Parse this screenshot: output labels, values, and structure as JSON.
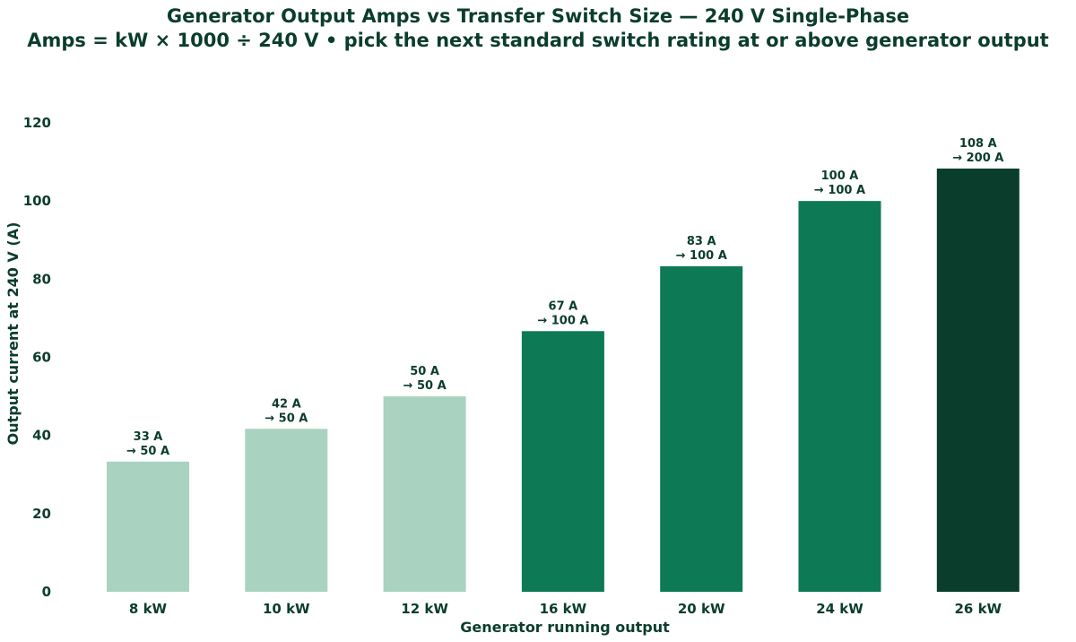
{
  "chart_data": {
    "type": "bar",
    "title": "Generator Output Amps vs Transfer Switch Size — 240 V Single-Phase",
    "subtitle": "Amps = kW × 1000 ÷ 240 V • pick the next standard switch rating at or above generator output",
    "xlabel": "Generator running output",
    "ylabel": "Output current at 240 V (A)",
    "ylim": [
      0,
      120
    ],
    "yticks": [
      0,
      20,
      40,
      60,
      80,
      100,
      120
    ],
    "grid": false,
    "categories": [
      "8 kW",
      "10 kW",
      "12 kW",
      "16 kW",
      "20 kW",
      "24 kW",
      "26 kW"
    ],
    "values": [
      33.3,
      41.7,
      50,
      66.7,
      83.3,
      100,
      108.3
    ],
    "value_labels": [
      "33 A",
      "42 A",
      "50 A",
      "67 A",
      "83 A",
      "100 A",
      "108 A"
    ],
    "switch_labels": [
      "→ 50 A",
      "→ 50 A",
      "→ 50 A",
      "→ 100 A",
      "→ 100 A",
      "→ 100 A",
      "→ 200 A"
    ],
    "switch_ratings": [
      50,
      50,
      50,
      100,
      100,
      100,
      200
    ],
    "colors": {
      "switch_50": "#aad2c1",
      "switch_100": "#0d7a55",
      "switch_200": "#0b3d2c",
      "text": "#0b3d2c"
    }
  }
}
